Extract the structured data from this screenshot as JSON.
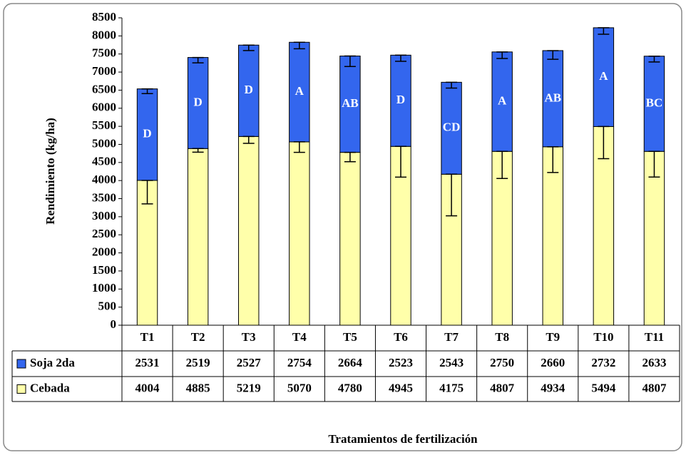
{
  "chart_data": {
    "type": "stacked_bar",
    "y_label": "Rendimiento (kg/ha)",
    "x_label": "Tratamientos de fertilización",
    "categories": [
      "T1",
      "T2",
      "T3",
      "T4",
      "T5",
      "T6",
      "T7",
      "T8",
      "T9",
      "T10",
      "T11"
    ],
    "series": [
      {
        "name": "Soja 2da",
        "color": "#3366ee",
        "values": [
          2531,
          2519,
          2527,
          2754,
          2664,
          2523,
          2543,
          2750,
          2660,
          2732,
          2633
        ],
        "errors": [
          130,
          150,
          150,
          180,
          290,
          170,
          160,
          180,
          240,
          180,
          160
        ],
        "letters": [
          "D",
          "D",
          "D",
          "A",
          "AB",
          "D",
          "CD",
          "A",
          "AB",
          "A",
          "BC"
        ]
      },
      {
        "name": "Cebada",
        "color": "#ffffaa",
        "values": [
          4004,
          4885,
          5219,
          5070,
          4780,
          4945,
          4175,
          4807,
          4934,
          5494,
          4807
        ],
        "errors": [
          650,
          100,
          190,
          290,
          260,
          850,
          1150,
          750,
          710,
          890,
          710
        ]
      }
    ],
    "ylim": [
      0,
      8500
    ],
    "yticks": [
      0,
      500,
      1000,
      1500,
      2000,
      2500,
      3000,
      3500,
      4000,
      4500,
      5000,
      5500,
      6000,
      6500,
      7000,
      7500,
      8000,
      8500
    ]
  }
}
